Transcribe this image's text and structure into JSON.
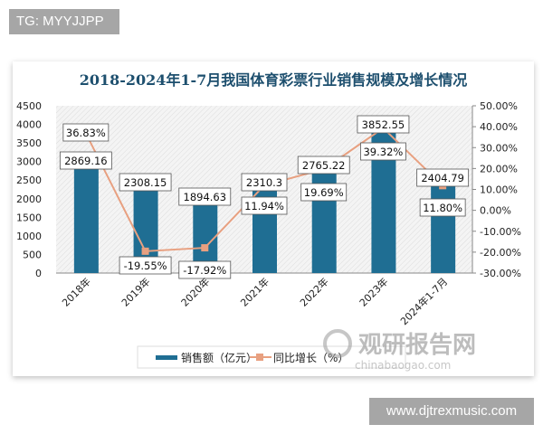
{
  "badge": "TG: MYYJJPP",
  "site_watermark": "www.djtrexmusic.com",
  "logo_watermark": {
    "name": "观研报告网",
    "url": "chinabaogao.com"
  },
  "chart_data": {
    "type": "bar+line",
    "title": "2018-2024年1-7月我国体育彩票行业销售规模及增长情况",
    "categories": [
      "2018年",
      "2019年",
      "2020年",
      "2021年",
      "2022年",
      "2023年",
      "2024年1-7月"
    ],
    "series": [
      {
        "name": "销售额（亿元）",
        "type": "bar",
        "axis": "left",
        "color": "#1f6e93",
        "values": [
          2869.16,
          2308.15,
          1894.63,
          2310.3,
          2765.22,
          3852.55,
          2404.79
        ],
        "labels": [
          "2869.16",
          "2308.15",
          "1894.63",
          "2310.3",
          "2765.22",
          "3852.55",
          "2404.79"
        ]
      },
      {
        "name": "同比增长（%）",
        "type": "line",
        "axis": "right",
        "color": "#e8a080",
        "values": [
          36.83,
          -19.55,
          -17.92,
          11.94,
          19.69,
          39.32,
          11.8
        ],
        "labels": [
          "36.83%",
          "-19.55%",
          "-17.92%",
          "11.94%",
          "19.69%",
          "39.32%",
          "11.80%"
        ]
      }
    ],
    "y_left": {
      "range": [
        0,
        4500
      ],
      "ticks": [
        "0",
        "500",
        "1000",
        "1500",
        "2000",
        "2500",
        "3000",
        "3500",
        "4000",
        "4500"
      ]
    },
    "y_right": {
      "range": [
        -30,
        50
      ],
      "ticks": [
        "-30.00%",
        "-20.00%",
        "-10.00%",
        "0.00%",
        "10.00%",
        "20.00%",
        "30.00%",
        "40.00%",
        "50.00%"
      ]
    },
    "legend_position": "bottom",
    "grid": false
  }
}
